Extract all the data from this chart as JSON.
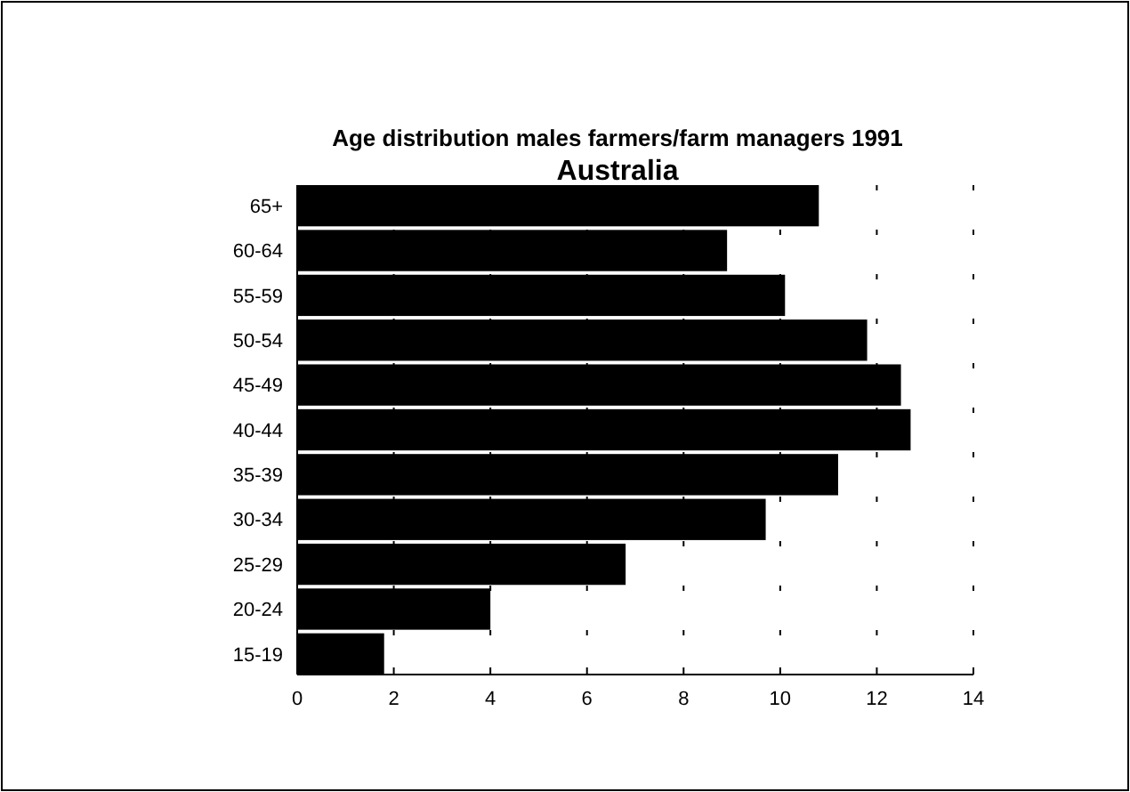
{
  "chart_data": {
    "type": "bar",
    "orientation": "horizontal",
    "title": "Age distribution males farmers/farm managers 1991",
    "subtitle": "Australia",
    "categories": [
      "65+",
      "60-64",
      "55-59",
      "50-54",
      "45-49",
      "40-44",
      "35-39",
      "30-34",
      "25-29",
      "20-24",
      "15-19"
    ],
    "values": [
      10.8,
      8.9,
      10.1,
      11.8,
      12.5,
      12.7,
      11.2,
      9.7,
      6.8,
      4.0,
      1.8
    ],
    "color": "#000000",
    "xlim": [
      0,
      14
    ],
    "xticks": [
      0,
      2,
      4,
      6,
      8,
      10,
      12,
      14
    ],
    "grid": "x"
  }
}
